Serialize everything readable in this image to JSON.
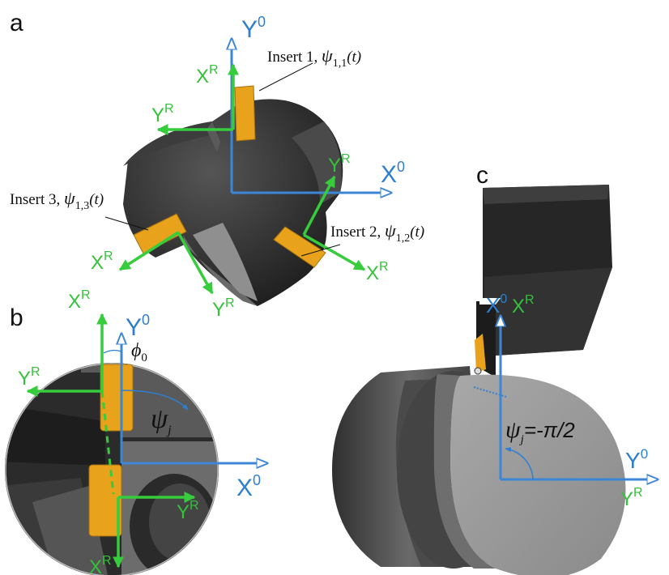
{
  "panels": {
    "a": "a",
    "b": "b",
    "c": "c"
  },
  "frame_labels": {
    "global_x": "X",
    "global_y": "Y",
    "global_sup": "0",
    "rot_x": "X",
    "rot_y": "Y",
    "rot_sup": "R"
  },
  "panel_a": {
    "insert1": {
      "name": "Insert 1, ",
      "psi": "ψ",
      "sub": "1,1",
      "arg": "(t)"
    },
    "insert2": {
      "name": "Insert 2, ",
      "psi": "ψ",
      "sub": "1,2",
      "arg": "(t)"
    },
    "insert3": {
      "name": "Insert 3, ",
      "psi": "ψ",
      "sub": "1,3",
      "arg": "(t)"
    }
  },
  "panel_b": {
    "phi": "ϕ",
    "phi_sub": "0",
    "psi": "ψ",
    "psi_sub": "j"
  },
  "panel_c": {
    "psi": "ψ",
    "psi_sub": "j",
    "psi_value": "=-π/2"
  },
  "colors": {
    "global_frame": "#3d86d6",
    "rotating_frame": "#36cc3c",
    "insert": "#e8a21b",
    "tool_body": "#2a2a2a"
  }
}
